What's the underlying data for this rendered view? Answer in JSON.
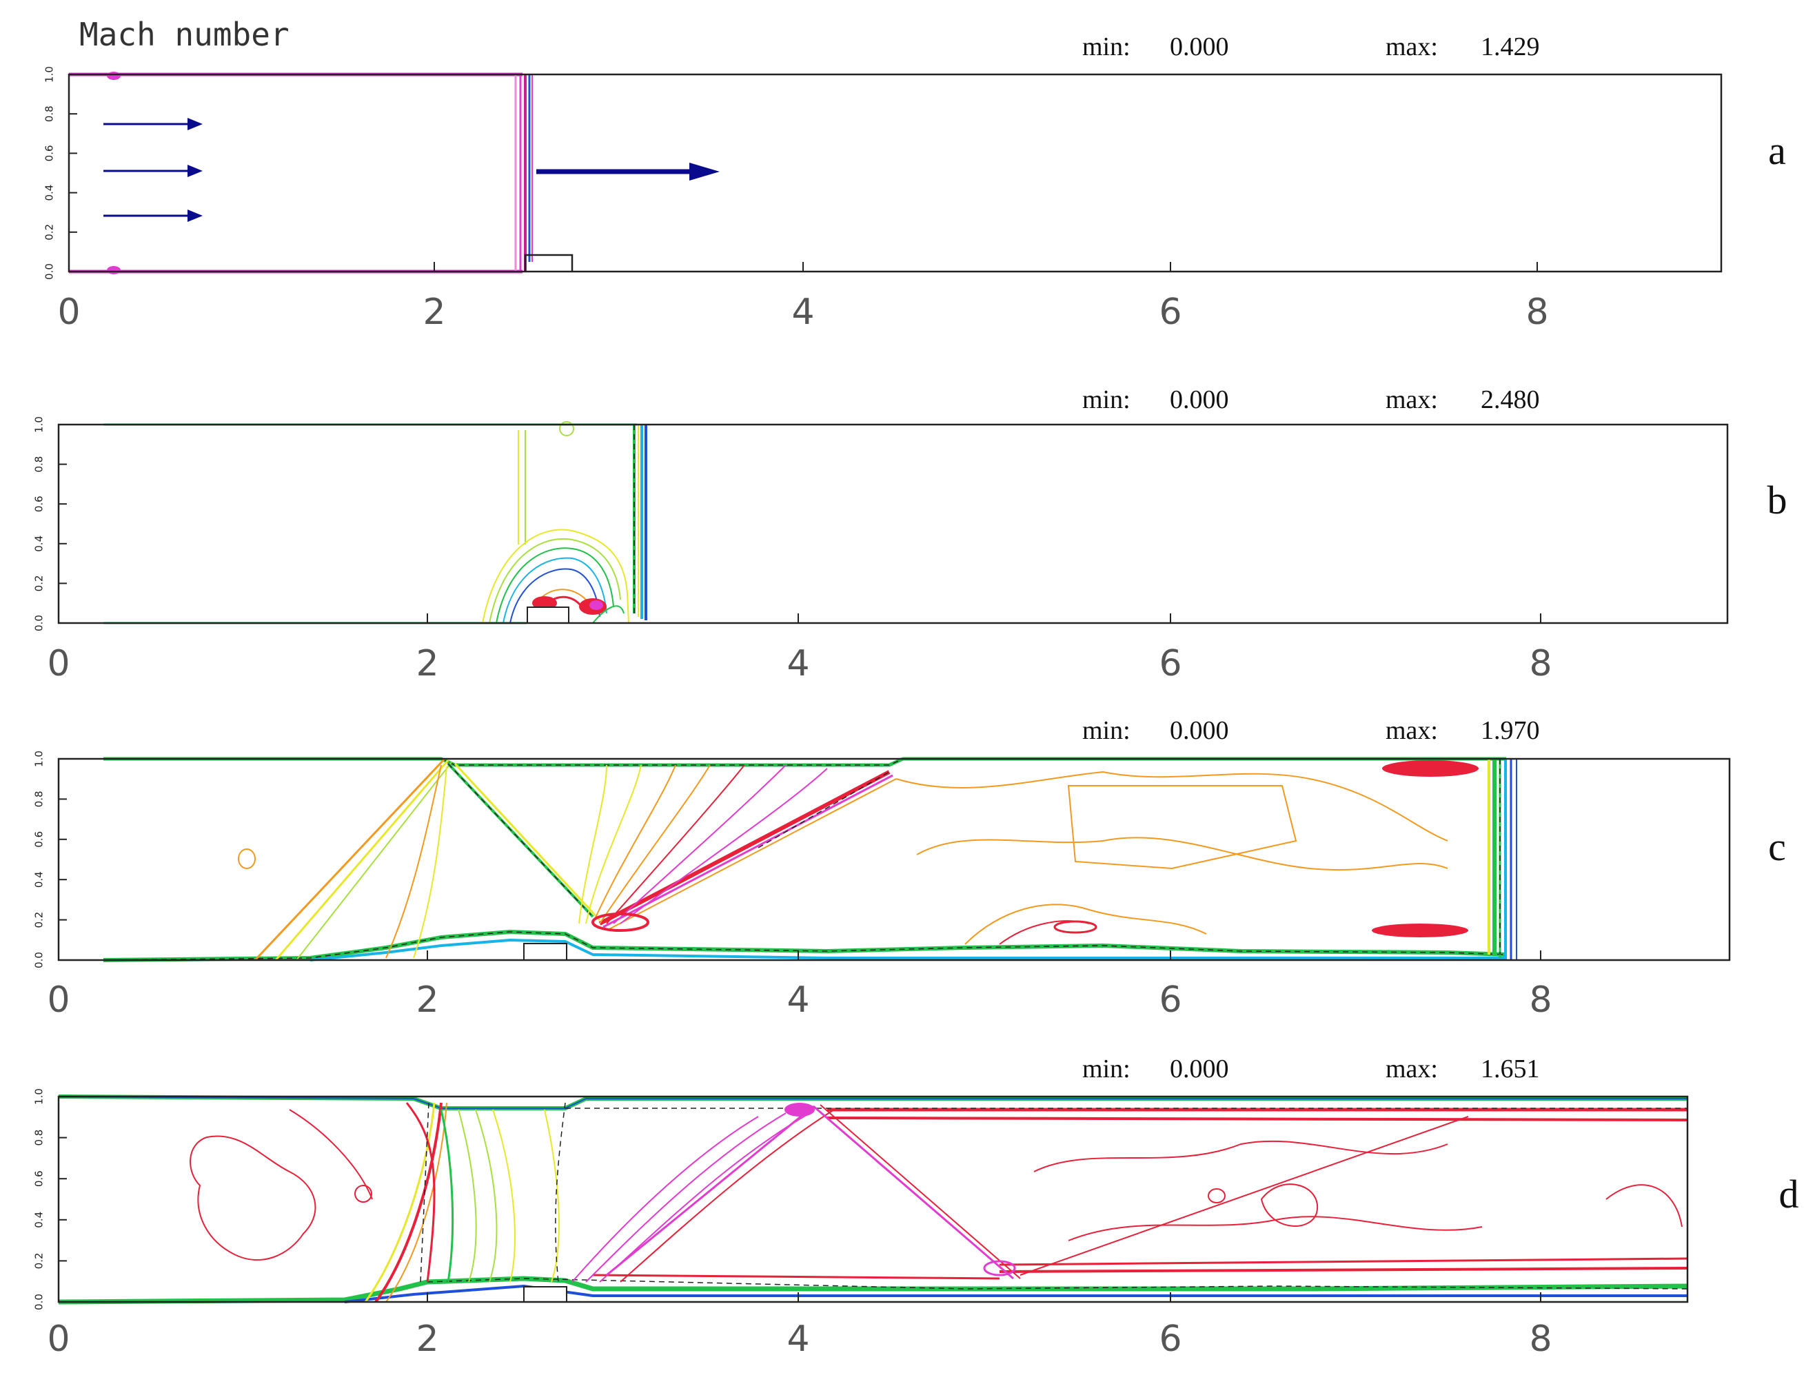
{
  "figure": {
    "title": "Mach number",
    "min_label": "min:",
    "max_label": "max:",
    "x_ticks": [
      "0",
      "2",
      "4",
      "6",
      "8"
    ],
    "y_ticks": [
      "0.0",
      "0.2",
      "0.4",
      "0.6",
      "0.8",
      "1.0"
    ],
    "x_range": [
      0,
      9
    ],
    "y_range": [
      0,
      1
    ],
    "colors": {
      "blue": "#1e4fd8",
      "cyan": "#18b4e6",
      "green": "#22c24a",
      "yellow": "#e8e82a",
      "orange": "#f39a1e",
      "red": "#e8203a",
      "magenta": "#e23bd0",
      "arrow": "#0a0a8c",
      "frame": "#222222"
    }
  },
  "panels": [
    {
      "label": "a",
      "min": "0.000",
      "max": "1.429"
    },
    {
      "label": "b",
      "min": "0.000",
      "max": "2.480"
    },
    {
      "label": "c",
      "min": "0.000",
      "max": "1.970"
    },
    {
      "label": "d",
      "min": "0.000",
      "max": "1.651"
    }
  ]
}
